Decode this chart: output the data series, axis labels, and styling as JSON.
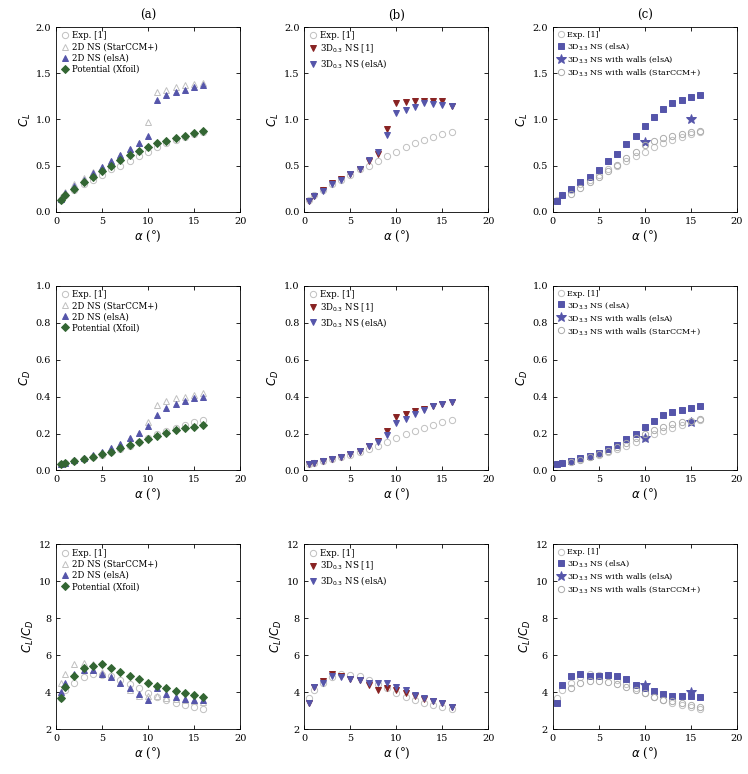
{
  "exp_alpha": [
    0.5,
    1,
    2,
    3,
    4,
    5,
    6,
    7,
    8,
    9,
    10,
    11,
    12,
    13,
    14,
    15,
    16
  ],
  "exp_CL": [
    0.13,
    0.18,
    0.24,
    0.3,
    0.35,
    0.4,
    0.46,
    0.5,
    0.55,
    0.6,
    0.65,
    0.7,
    0.74,
    0.78,
    0.81,
    0.84,
    0.86
  ],
  "exp_CD": [
    0.035,
    0.04,
    0.05,
    0.06,
    0.072,
    0.085,
    0.098,
    0.115,
    0.135,
    0.155,
    0.175,
    0.198,
    0.215,
    0.232,
    0.248,
    0.262,
    0.275
  ],
  "exp_LD": [
    3.7,
    4.1,
    4.5,
    4.8,
    5.0,
    4.95,
    4.9,
    4.65,
    4.45,
    4.2,
    3.95,
    3.75,
    3.55,
    3.4,
    3.3,
    3.2,
    3.1
  ],
  "a_2DNS_star_alpha": [
    0.5,
    1,
    2,
    3,
    4,
    5,
    6,
    7,
    8,
    9,
    10,
    11,
    12,
    13,
    14,
    15,
    16
  ],
  "a_2DNS_star_CL": [
    0.16,
    0.22,
    0.3,
    0.37,
    0.43,
    0.49,
    0.55,
    0.62,
    0.68,
    0.75,
    0.97,
    1.3,
    1.32,
    1.35,
    1.37,
    1.38,
    1.4
  ],
  "a_2DNS_star_CD": [
    0.035,
    0.042,
    0.055,
    0.068,
    0.083,
    0.1,
    0.12,
    0.145,
    0.175,
    0.205,
    0.265,
    0.355,
    0.375,
    0.39,
    0.4,
    0.41,
    0.42
  ],
  "a_2DNS_star_LD": [
    4.5,
    5.0,
    5.5,
    5.6,
    5.5,
    5.1,
    4.8,
    4.5,
    4.1,
    3.8,
    3.8,
    3.8,
    3.7,
    3.65,
    3.6,
    3.5,
    3.45
  ],
  "a_2DNS_elsa_alpha": [
    0.5,
    1,
    2,
    3,
    4,
    5,
    6,
    7,
    8,
    9,
    10,
    11,
    12,
    13,
    14,
    15,
    16
  ],
  "a_2DNS_elsa_CL": [
    0.14,
    0.2,
    0.28,
    0.35,
    0.42,
    0.48,
    0.55,
    0.62,
    0.68,
    0.75,
    0.82,
    1.21,
    1.27,
    1.3,
    1.32,
    1.35,
    1.37
  ],
  "a_2DNS_elsa_CD": [
    0.035,
    0.042,
    0.055,
    0.068,
    0.083,
    0.1,
    0.12,
    0.145,
    0.175,
    0.205,
    0.24,
    0.3,
    0.34,
    0.36,
    0.375,
    0.39,
    0.4
  ],
  "a_2DNS_elsa_LD": [
    4.0,
    4.5,
    5.0,
    5.2,
    5.2,
    5.0,
    4.8,
    4.5,
    4.2,
    3.9,
    3.6,
    4.2,
    3.9,
    3.75,
    3.65,
    3.6,
    3.55
  ],
  "a_pot_alpha": [
    0.5,
    1,
    2,
    3,
    4,
    5,
    6,
    7,
    8,
    9,
    10,
    11,
    12,
    13,
    14,
    15,
    16
  ],
  "a_pot_CL": [
    0.13,
    0.18,
    0.25,
    0.32,
    0.38,
    0.44,
    0.5,
    0.56,
    0.61,
    0.66,
    0.7,
    0.74,
    0.77,
    0.8,
    0.82,
    0.85,
    0.87
  ],
  "a_pot_CD": [
    0.035,
    0.04,
    0.05,
    0.06,
    0.073,
    0.087,
    0.102,
    0.12,
    0.138,
    0.156,
    0.172,
    0.188,
    0.203,
    0.217,
    0.228,
    0.237,
    0.246
  ],
  "a_pot_LD": [
    3.7,
    4.3,
    4.9,
    5.3,
    5.4,
    5.5,
    5.3,
    5.1,
    4.9,
    4.7,
    4.5,
    4.35,
    4.2,
    4.05,
    3.95,
    3.85,
    3.75
  ],
  "b_3DNS_ref_alpha": [
    0.5,
    1,
    2,
    3,
    4,
    5,
    6,
    7,
    8,
    9,
    10,
    11,
    12,
    13,
    14,
    15,
    16
  ],
  "b_3DNS_ref_CL": [
    0.12,
    0.17,
    0.24,
    0.31,
    0.36,
    0.41,
    0.46,
    0.55,
    0.63,
    0.9,
    1.18,
    1.19,
    1.2,
    1.2,
    1.2,
    1.2,
    1.15
  ],
  "b_3DNS_ref_CD": [
    0.035,
    0.04,
    0.052,
    0.062,
    0.074,
    0.09,
    0.105,
    0.13,
    0.158,
    0.215,
    0.29,
    0.305,
    0.32,
    0.335,
    0.348,
    0.358,
    0.368
  ],
  "b_3DNS_ref_LD": [
    3.4,
    4.3,
    4.6,
    5.0,
    4.9,
    4.7,
    4.65,
    4.4,
    4.1,
    4.2,
    4.1,
    3.95,
    3.8,
    3.65,
    3.5,
    3.4,
    3.2
  ],
  "b_3DNS_elsa_alpha": [
    0.5,
    1,
    2,
    3,
    4,
    5,
    6,
    7,
    8,
    9,
    10,
    11,
    12,
    13,
    14,
    15,
    16
  ],
  "b_3DNS_elsa_CL": [
    0.12,
    0.17,
    0.23,
    0.3,
    0.35,
    0.41,
    0.46,
    0.56,
    0.65,
    0.83,
    1.07,
    1.1,
    1.14,
    1.18,
    1.17,
    1.16,
    1.15
  ],
  "b_3DNS_elsa_CD": [
    0.035,
    0.04,
    0.052,
    0.062,
    0.074,
    0.09,
    0.105,
    0.13,
    0.153,
    0.192,
    0.258,
    0.28,
    0.308,
    0.33,
    0.348,
    0.36,
    0.372
  ],
  "b_3DNS_elsa_LD": [
    3.4,
    4.3,
    4.5,
    4.9,
    4.8,
    4.7,
    4.65,
    4.5,
    4.5,
    4.5,
    4.3,
    4.1,
    3.85,
    3.7,
    3.5,
    3.4,
    3.2
  ],
  "c_3DNS_elsa_alpha": [
    0.5,
    1,
    2,
    3,
    4,
    5,
    6,
    7,
    8,
    9,
    10,
    11,
    12,
    13,
    14,
    15,
    16
  ],
  "c_3DNS_elsa_CL": [
    0.12,
    0.18,
    0.25,
    0.32,
    0.38,
    0.45,
    0.55,
    0.63,
    0.73,
    0.82,
    0.93,
    1.03,
    1.11,
    1.18,
    1.21,
    1.24,
    1.27
  ],
  "c_3DNS_elsa_CD": [
    0.035,
    0.04,
    0.052,
    0.065,
    0.08,
    0.097,
    0.117,
    0.138,
    0.168,
    0.198,
    0.235,
    0.268,
    0.298,
    0.318,
    0.328,
    0.338,
    0.347
  ],
  "c_3DNS_elsa_LD": [
    3.4,
    4.4,
    4.9,
    5.0,
    4.9,
    4.85,
    4.95,
    4.85,
    4.7,
    4.4,
    4.2,
    4.05,
    3.9,
    3.8,
    3.8,
    3.78,
    3.72
  ],
  "c_3DNS_walls_elsa_alpha": [
    10,
    15
  ],
  "c_3DNS_walls_elsa_CL": [
    0.76,
    1.0
  ],
  "c_3DNS_walls_elsa_CD": [
    0.175,
    0.26
  ],
  "c_3DNS_walls_elsa_LD": [
    4.4,
    4.0
  ],
  "c_3DNS_walls_star_alpha": [
    2,
    3,
    4,
    5,
    6,
    7,
    8,
    9,
    10,
    11,
    12,
    13,
    14,
    15,
    16
  ],
  "c_3DNS_walls_star_CL": [
    0.19,
    0.26,
    0.32,
    0.38,
    0.44,
    0.51,
    0.58,
    0.65,
    0.72,
    0.77,
    0.8,
    0.82,
    0.84,
    0.86,
    0.87
  ],
  "c_3DNS_walls_star_CD": [
    0.046,
    0.058,
    0.072,
    0.088,
    0.105,
    0.126,
    0.15,
    0.175,
    0.2,
    0.22,
    0.236,
    0.25,
    0.26,
    0.27,
    0.278
  ],
  "c_3DNS_walls_star_LD": [
    4.2,
    4.5,
    4.6,
    4.6,
    4.55,
    4.45,
    4.3,
    4.1,
    3.95,
    3.75,
    3.6,
    3.5,
    3.4,
    3.3,
    3.2
  ],
  "colors": {
    "exp": "#c0c0c0",
    "2DNS_star": "#c0c0c0",
    "2DNS_elsa": "#5555aa",
    "potential": "#336633",
    "3DNS_ref": "#882222",
    "3DNS_elsa_b": "#5555aa",
    "3DNS_elsa_c": "#5555aa",
    "3DNS_walls_elsa": "#5555aa",
    "3DNS_walls_star": "#aaaaaa"
  }
}
